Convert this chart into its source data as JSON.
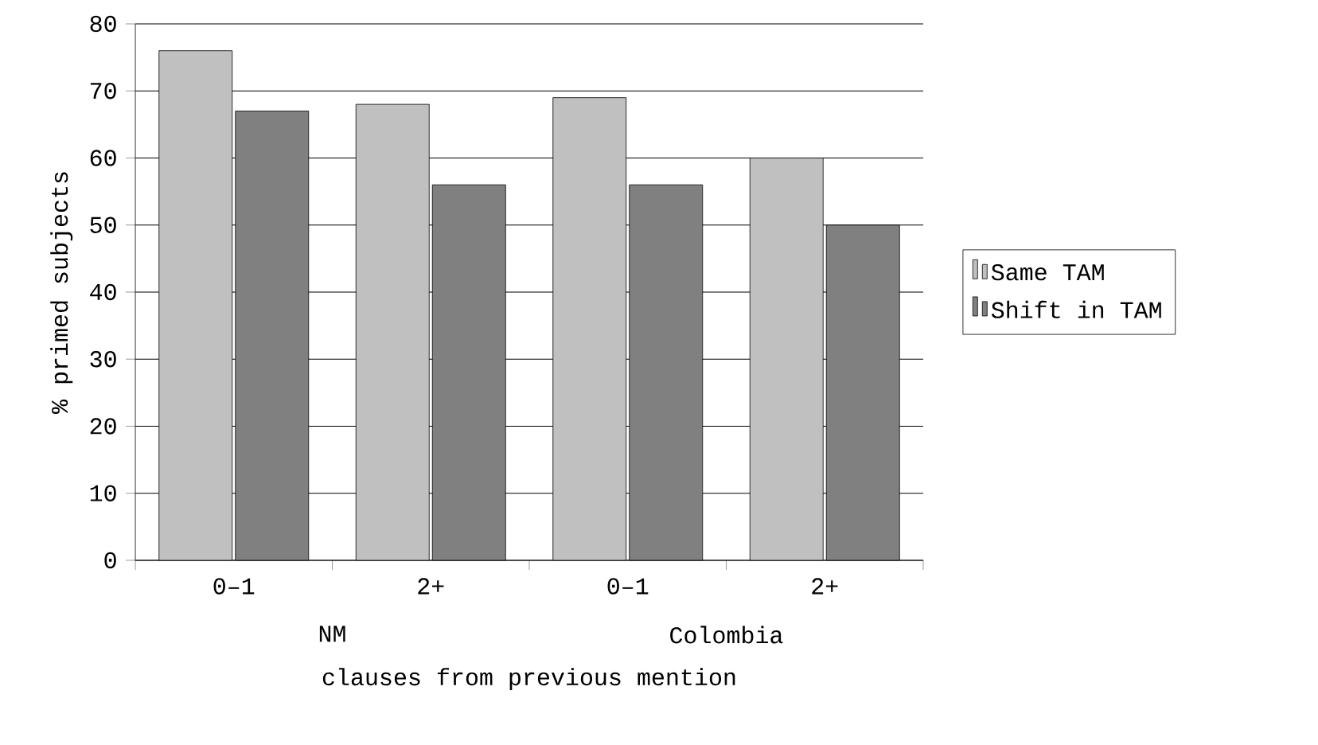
{
  "chart_data": {
    "type": "bar",
    "xlabel": "clauses from previous mention",
    "ylabel": "% primed subjects",
    "categories": [
      "0–1",
      "2+",
      "0–1",
      "2+"
    ],
    "series": [
      {
        "name": "Same TAM",
        "color": "#c0c0c0",
        "values": [
          76,
          68,
          69,
          60
        ]
      },
      {
        "name": "Shift in TAM",
        "color": "#808080",
        "values": [
          67,
          56,
          56,
          50
        ]
      }
    ],
    "annotations": [
      "NM",
      "Colombia"
    ],
    "ylim": [
      0,
      80
    ],
    "yticks": [
      0,
      10,
      20,
      30,
      40,
      50,
      60,
      70,
      80
    ],
    "grid": "y",
    "legend": "right"
  }
}
